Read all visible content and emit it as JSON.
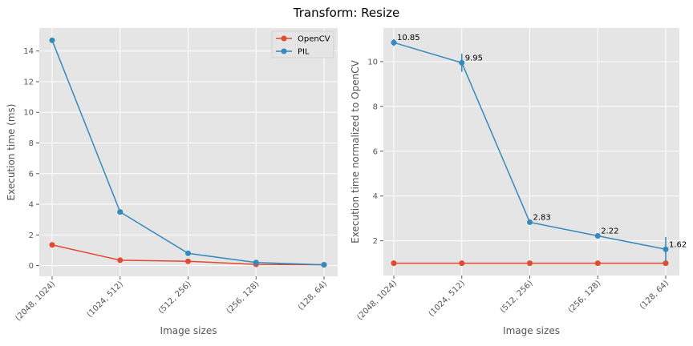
{
  "figure": {
    "title": "Transform: Resize"
  },
  "colors": {
    "opencv": "#E24A33",
    "pil": "#348ABD",
    "panel_bg": "#E5E5E5",
    "grid": "#FFFFFF",
    "tick_text": "#555555",
    "label_text": "#555555"
  },
  "chart_data": [
    {
      "type": "line",
      "categories": [
        "(2048, 1024)",
        "(1024, 512)",
        "(512, 256)",
        "(256, 128)",
        "(128, 64)"
      ],
      "xlabel": "Image sizes",
      "ylabel": "Execution time (ms)",
      "ylim": [
        -0.7,
        15.5
      ],
      "yticks": [
        0,
        2,
        4,
        6,
        8,
        10,
        12,
        14
      ],
      "grid": true,
      "legend": "top-right",
      "series": [
        {
          "name": "OpenCV",
          "color": "#E24A33",
          "values": [
            1.35,
            0.35,
            0.28,
            0.08,
            0.05
          ]
        },
        {
          "name": "PIL",
          "color": "#348ABD",
          "values": [
            14.7,
            3.5,
            0.8,
            0.2,
            0.05
          ]
        }
      ]
    },
    {
      "type": "line",
      "categories": [
        "(2048, 1024)",
        "(1024, 512)",
        "(512, 256)",
        "(256, 128)",
        "(128, 64)"
      ],
      "xlabel": "Image sizes",
      "ylabel": "Execution time normalized to OpenCV",
      "ylim": [
        0.45,
        11.5
      ],
      "yticks": [
        2,
        4,
        6,
        8,
        10
      ],
      "grid": true,
      "series": [
        {
          "name": "OpenCV",
          "color": "#E24A33",
          "values": [
            1,
            1,
            1,
            1,
            1
          ]
        },
        {
          "name": "PIL",
          "color": "#348ABD",
          "values": [
            10.85,
            9.95,
            2.83,
            2.22,
            1.62
          ],
          "errors": [
            0.15,
            0.4,
            0.1,
            0.1,
            0.55
          ],
          "annotations": [
            "10.85",
            "9.95",
            "2.83",
            "2.22",
            "1.62"
          ]
        }
      ]
    }
  ]
}
